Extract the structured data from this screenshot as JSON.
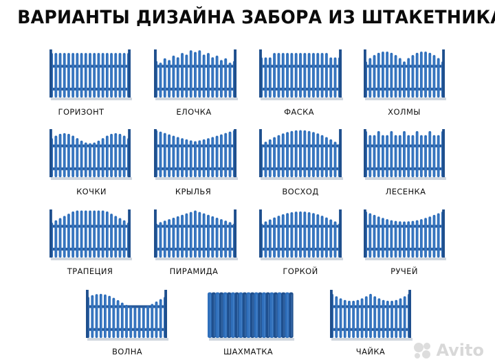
{
  "title": "ВАРИАНТЫ ДИЗАЙНА ЗАБОРА ИЗ ШТАКЕТНИКА:",
  "colors": {
    "picket": "#2f6fbb",
    "picket_dark": "#1f4f8d",
    "rail": "#27599a",
    "shadow": "#cfd6de"
  },
  "fences": [
    {
      "id": "gorizont",
      "label": "ГОРИЗОНТ",
      "shape": "flat"
    },
    {
      "id": "elochka",
      "label": "ЕЛОЧКА",
      "shape": "elochka"
    },
    {
      "id": "faska",
      "label": "ФАСКА",
      "shape": "faska"
    },
    {
      "id": "holmy",
      "label": "ХОЛМЫ",
      "shape": "holmy"
    },
    {
      "id": "kochki",
      "label": "КОЧКИ",
      "shape": "kochki"
    },
    {
      "id": "krylya",
      "label": "КРЫЛЬЯ",
      "shape": "krylya"
    },
    {
      "id": "voshod",
      "label": "ВОСХОД",
      "shape": "voshod"
    },
    {
      "id": "lesenka",
      "label": "ЛЕСЕНКА",
      "shape": "lesenka"
    },
    {
      "id": "trapeciya",
      "label": "ТРАПЕЦИЯ",
      "shape": "trapeciya"
    },
    {
      "id": "piramida",
      "label": "ПИРАМИДА",
      "shape": "piramida"
    },
    {
      "id": "gorkoy",
      "label": "ГОРКОЙ",
      "shape": "gorkoy"
    },
    {
      "id": "ruchey",
      "label": "РУЧЕЙ",
      "shape": "ruchey"
    },
    {
      "id": "volna",
      "label": "ВОЛНА",
      "shape": "volna"
    },
    {
      "id": "shahmatka",
      "label": "ШАХМАТКА",
      "shape": "shahmatka"
    },
    {
      "id": "chayka",
      "label": "ЧАЙКА",
      "shape": "chayka"
    }
  ],
  "watermark": {
    "text": "Avito"
  }
}
